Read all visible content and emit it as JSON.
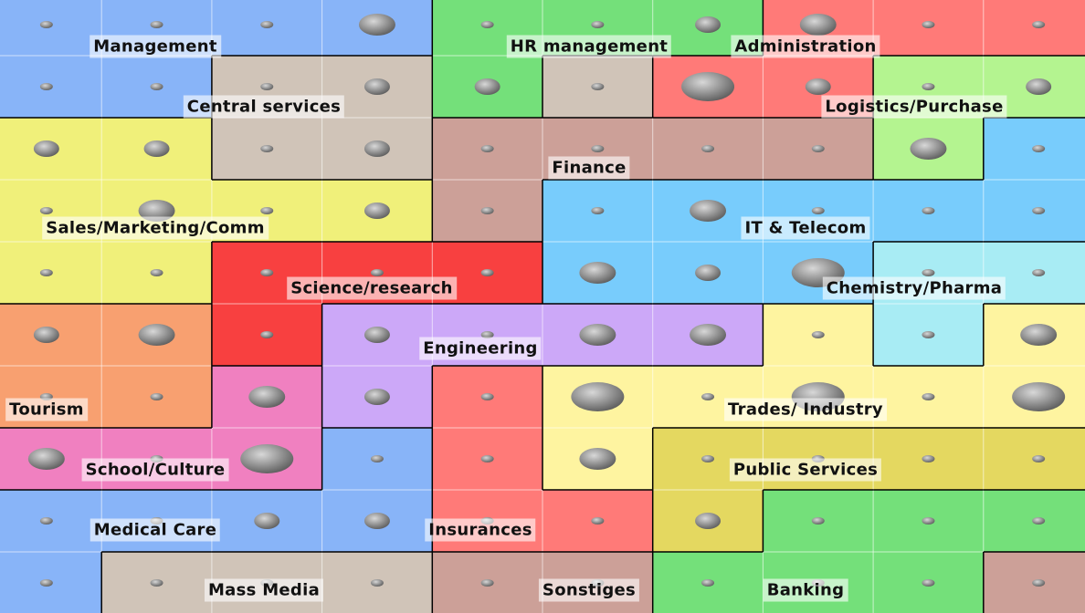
{
  "labels": [
    "Management",
    "HR management",
    "Administration",
    "Central services",
    "Logistics/Purchase",
    "Finance",
    "Sales/Marketing/Comm",
    "IT & Telecom",
    "Science/research",
    "Chemistry/Pharma",
    "Engineering",
    "Tourism",
    "Trades/ Industry",
    "School/Culture",
    "Public Services",
    "Medical Care",
    "Insurances",
    "Mass Media",
    "Sonstiges",
    "Banking"
  ]
}
